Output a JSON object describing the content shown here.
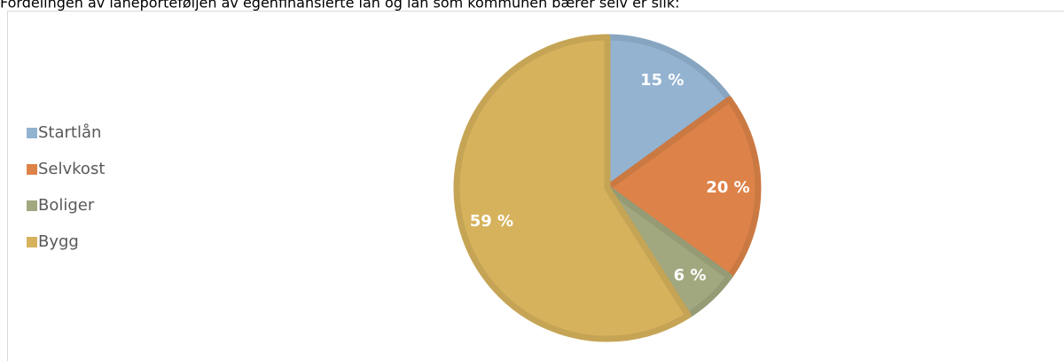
{
  "chart_data": {
    "type": "pie",
    "title": "Fordelingen av låneporteføljen av egenfinansierte lån og lån som kommunen bærer selv er slik:",
    "categories": [
      "Startlån",
      "Selvkost",
      "Boliger",
      "Bygg"
    ],
    "values": [
      15,
      20,
      6,
      59
    ],
    "value_labels": [
      "15 %",
      "20 %",
      "6 %",
      "59 %"
    ],
    "colors": [
      "#93b3d1",
      "#dd8349",
      "#a1a87f",
      "#d6b25c"
    ],
    "legend": "left"
  }
}
